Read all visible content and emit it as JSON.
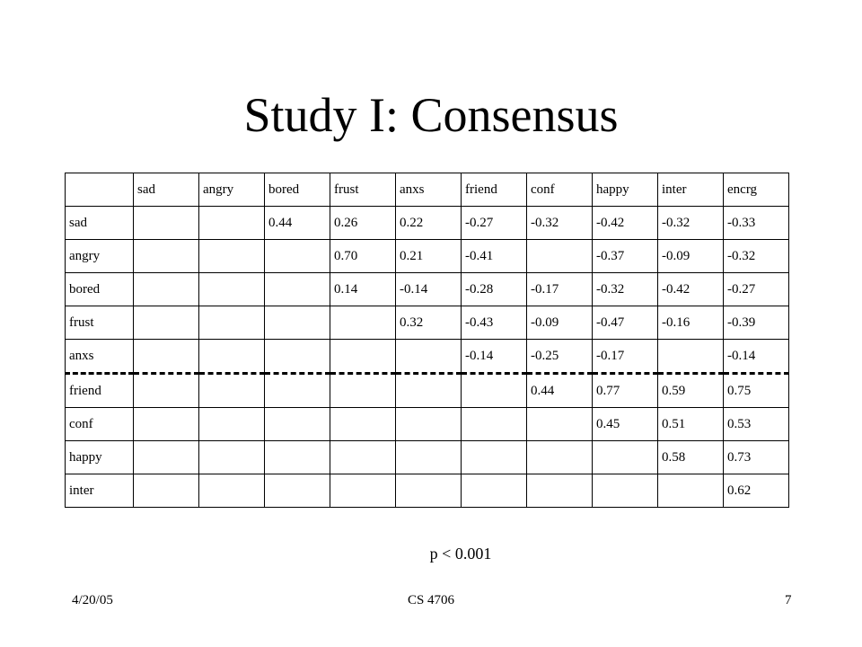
{
  "title": "Study I: Consensus",
  "table": {
    "columns": [
      "sad",
      "angry",
      "bored",
      "frust",
      "anxs",
      "friend",
      "conf",
      "happy",
      "inter",
      "encrg"
    ],
    "rows": [
      {
        "label": "sad",
        "cells": [
          "",
          "",
          "0.44",
          "0.26",
          "0.22",
          "-0.27",
          "-0.32",
          "-0.42",
          "-0.32",
          "-0.33"
        ]
      },
      {
        "label": "angry",
        "cells": [
          "",
          "",
          "",
          "0.70",
          "0.21",
          "-0.41",
          "",
          "-0.37",
          "-0.09",
          "-0.32"
        ]
      },
      {
        "label": "bored",
        "cells": [
          "",
          "",
          "",
          "0.14",
          "-0.14",
          "-0.28",
          "-0.17",
          "-0.32",
          "-0.42",
          "-0.27"
        ]
      },
      {
        "label": "frust",
        "cells": [
          "",
          "",
          "",
          "",
          "0.32",
          "-0.43",
          "-0.09",
          "-0.47",
          "-0.16",
          "-0.39"
        ]
      },
      {
        "label": "anxs",
        "cells": [
          "",
          "",
          "",
          "",
          "",
          "-0.14",
          "-0.25",
          "-0.17",
          "",
          "-0.14"
        ]
      },
      {
        "label": "friend",
        "cells": [
          "",
          "",
          "",
          "",
          "",
          "",
          "0.44",
          "0.77",
          "0.59",
          "0.75"
        ]
      },
      {
        "label": "conf",
        "cells": [
          "",
          "",
          "",
          "",
          "",
          "",
          "",
          "0.45",
          "0.51",
          "0.53"
        ]
      },
      {
        "label": "happy",
        "cells": [
          "",
          "",
          "",
          "",
          "",
          "",
          "",
          "",
          "0.58",
          "0.73"
        ]
      },
      {
        "label": "inter",
        "cells": [
          "",
          "",
          "",
          "",
          "",
          "",
          "",
          "",
          "",
          "0.62"
        ]
      }
    ]
  },
  "note": "p < 0.001",
  "footer": {
    "date": "4/20/05",
    "course": "CS 4706",
    "page": "7"
  }
}
